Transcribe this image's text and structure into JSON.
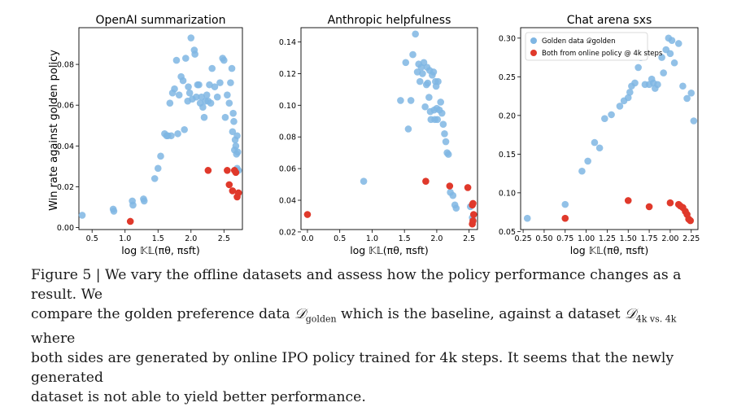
{
  "colors": {
    "golden": "#7fb6e3",
    "online": "#e0392b",
    "axis": "#000000"
  },
  "shared_ylabel": "Win rate against golden policy",
  "caption": {
    "figure_label": "Figure 5 | ",
    "line1": "We vary the offline datasets and assess how the policy performance changes as a result. We",
    "line2_a": "compare the golden preference data ",
    "golden_symbol": "𝒟",
    "golden_sub": "golden",
    "line2_b": " which is the baseline, against a dataset ",
    "dataset_symbol": "𝒟",
    "dataset_sub": "4k vs. 4k",
    "line2_c": " where",
    "line3": "both sides are generated by online IPO policy trained for 4k steps. It seems that the newly generated",
    "line4": "dataset is not able to yield better performance."
  },
  "chart_data": [
    {
      "type": "scatter",
      "title": "OpenAI summarization",
      "xlabel": "log 𝕂𝕃(πθ, πsft)",
      "ylabel": "Win rate against golden policy",
      "xlim": [
        0.3,
        2.78
      ],
      "ylim": [
        -0.001,
        0.098
      ],
      "xticks": [
        0.5,
        1.0,
        1.5,
        2.0,
        2.5
      ],
      "xticklabels": [
        "0.5",
        "1.0",
        "1.5",
        "2.0",
        "2.5"
      ],
      "yticks": [
        0.0,
        0.02,
        0.04,
        0.06,
        0.08
      ],
      "yticklabels": [
        "0.00",
        "0.02",
        "0.04",
        "0.06",
        "0.08"
      ],
      "legend": "",
      "series": [
        {
          "color": "golden",
          "x": [
            0.35,
            0.82,
            0.83,
            1.11,
            1.12,
            1.28,
            1.29,
            1.45,
            1.5,
            1.54,
            1.6,
            1.63,
            1.65,
            1.68,
            1.7,
            1.72,
            1.75,
            1.78,
            1.8,
            1.82,
            1.85,
            1.88,
            1.9,
            1.92,
            1.95,
            1.96,
            1.98,
            2.0,
            2.02,
            2.05,
            2.06,
            2.08,
            2.1,
            2.12,
            2.14,
            2.16,
            2.18,
            2.2,
            2.22,
            2.24,
            2.26,
            2.28,
            2.3,
            2.32,
            2.36,
            2.4,
            2.44,
            2.48,
            2.5,
            2.52,
            2.55,
            2.58,
            2.6,
            2.62,
            2.63,
            2.64,
            2.65,
            2.66,
            2.67,
            2.68,
            2.69,
            2.7,
            2.7,
            2.71,
            2.72
          ],
          "y": [
            0.006,
            0.009,
            0.008,
            0.013,
            0.011,
            0.014,
            0.013,
            0.024,
            0.029,
            0.035,
            0.046,
            0.045,
            0.045,
            0.061,
            0.045,
            0.066,
            0.068,
            0.082,
            0.046,
            0.065,
            0.074,
            0.072,
            0.048,
            0.083,
            0.062,
            0.069,
            0.066,
            0.093,
            0.063,
            0.087,
            0.085,
            0.064,
            0.07,
            0.07,
            0.061,
            0.064,
            0.059,
            0.054,
            0.062,
            0.065,
            0.062,
            0.07,
            0.061,
            0.078,
            0.069,
            0.064,
            0.071,
            0.083,
            0.082,
            0.054,
            0.065,
            0.061,
            0.071,
            0.078,
            0.047,
            0.056,
            0.052,
            0.038,
            0.043,
            0.04,
            0.036,
            0.029,
            0.045,
            0.037,
            0.028
          ]
        },
        {
          "color": "online",
          "x": [
            1.08,
            2.26,
            2.55,
            2.58,
            2.63,
            2.66,
            2.68,
            2.7,
            2.72
          ],
          "y": [
            0.003,
            0.028,
            0.028,
            0.021,
            0.018,
            0.028,
            0.027,
            0.015,
            0.017
          ]
        }
      ]
    },
    {
      "type": "scatter",
      "title": "Anthropic helpfulness",
      "xlabel": "log 𝕂𝕃(πθ, πsft)",
      "ylabel": "",
      "xlim": [
        -0.1,
        2.63
      ],
      "ylim": [
        0.0215,
        0.149
      ],
      "xticks": [
        0.0,
        0.5,
        1.0,
        1.5,
        2.0,
        2.5
      ],
      "xticklabels": [
        "0.0",
        "0.5",
        "1.0",
        "1.5",
        "2.0",
        "2.5"
      ],
      "yticks": [
        0.02,
        0.04,
        0.06,
        0.08,
        0.1,
        0.12,
        0.14
      ],
      "yticklabels": [
        "0.02",
        "0.04",
        "0.06",
        "0.08",
        "0.10",
        "0.12",
        "0.14"
      ],
      "legend": "",
      "series": [
        {
          "color": "golden",
          "x": [
            0.87,
            1.44,
            1.52,
            1.56,
            1.6,
            1.63,
            1.67,
            1.7,
            1.72,
            1.74,
            1.76,
            1.78,
            1.8,
            1.82,
            1.84,
            1.85,
            1.86,
            1.88,
            1.89,
            1.9,
            1.91,
            1.93,
            1.95,
            1.96,
            1.97,
            1.98,
            1.99,
            2.0,
            2.01,
            2.02,
            2.04,
            2.06,
            2.08,
            2.1,
            2.12,
            2.14,
            2.16,
            2.18,
            2.21,
            2.25,
            2.28,
            2.3,
            2.52,
            2.55,
            2.56
          ],
          "y": [
            0.052,
            0.103,
            0.127,
            0.085,
            0.103,
            0.132,
            0.145,
            0.121,
            0.126,
            0.115,
            0.124,
            0.12,
            0.127,
            0.099,
            0.113,
            0.124,
            0.114,
            0.105,
            0.122,
            0.096,
            0.091,
            0.119,
            0.121,
            0.097,
            0.091,
            0.115,
            0.112,
            0.098,
            0.091,
            0.115,
            0.097,
            0.102,
            0.095,
            0.088,
            0.082,
            0.077,
            0.07,
            0.069,
            0.045,
            0.043,
            0.037,
            0.035,
            0.036,
            0.029,
            0.027
          ]
        },
        {
          "color": "online",
          "x": [
            0.0,
            1.83,
            2.2,
            2.48,
            2.55,
            2.56,
            2.57,
            2.56,
            2.55
          ],
          "y": [
            0.031,
            0.052,
            0.049,
            0.048,
            0.037,
            0.038,
            0.031,
            0.027,
            0.025
          ]
        }
      ]
    },
    {
      "type": "scatter",
      "title": "Chat arena sxs",
      "xlabel": "log 𝕂𝕃(πθ, πsft)",
      "ylabel": "",
      "xlim": [
        0.22,
        2.33
      ],
      "ylim": [
        0.0525,
        0.3135
      ],
      "xticks": [
        0.25,
        0.5,
        0.75,
        1.0,
        1.25,
        1.5,
        1.75,
        2.0,
        2.25
      ],
      "xticklabels": [
        "0.25",
        "0.50",
        "0.75",
        "1.00",
        "1.25",
        "1.50",
        "1.75",
        "2.00",
        "2.25"
      ],
      "yticks": [
        0.05,
        0.1,
        0.15,
        0.2,
        0.25,
        0.3
      ],
      "yticklabels": [
        "0.05",
        "0.10",
        "0.15",
        "0.20",
        "0.25",
        "0.30"
      ],
      "legend": "top-left",
      "legend_entries": [
        "Golden data 𝒟golden",
        "Both from online policy @ 4k steps"
      ],
      "series": [
        {
          "color": "golden",
          "x": [
            0.3,
            0.75,
            0.95,
            1.02,
            1.1,
            1.16,
            1.22,
            1.3,
            1.4,
            1.45,
            1.5,
            1.52,
            1.54,
            1.58,
            1.62,
            1.65,
            1.7,
            1.75,
            1.78,
            1.8,
            1.82,
            1.85,
            1.9,
            1.92,
            1.95,
            1.98,
            2.0,
            2.02,
            2.05,
            2.1,
            2.15,
            2.2,
            2.25,
            2.28
          ],
          "y": [
            0.067,
            0.085,
            0.128,
            0.141,
            0.165,
            0.158,
            0.196,
            0.201,
            0.212,
            0.219,
            0.223,
            0.23,
            0.238,
            0.242,
            0.262,
            0.275,
            0.24,
            0.24,
            0.247,
            0.242,
            0.235,
            0.24,
            0.275,
            0.255,
            0.285,
            0.3,
            0.28,
            0.297,
            0.268,
            0.293,
            0.238,
            0.222,
            0.229,
            0.193
          ]
        },
        {
          "color": "online",
          "x": [
            0.75,
            1.5,
            1.75,
            2.0,
            2.1,
            2.12,
            2.15,
            2.18,
            2.2,
            2.22,
            2.24
          ],
          "y": [
            0.067,
            0.09,
            0.082,
            0.087,
            0.085,
            0.083,
            0.081,
            0.076,
            0.072,
            0.066,
            0.064
          ]
        }
      ]
    }
  ]
}
